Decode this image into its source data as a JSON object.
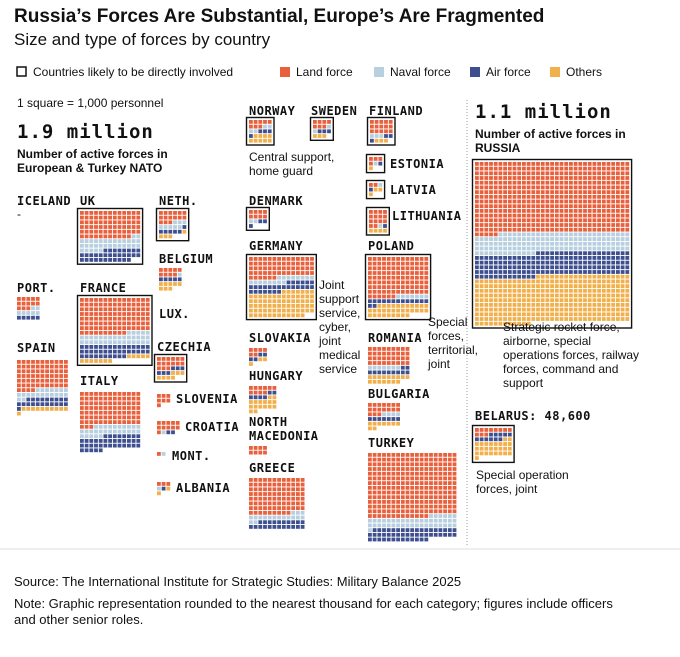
{
  "chart_data": {
    "type": "waffle",
    "title": "Russia’s Forces Are Substantial, Europe’s Are Fragmented",
    "subtitle": "Size and type of forces by country",
    "involved_label": "Countries likely to be directly involved",
    "series": [
      {
        "name": "Land force",
        "color": "#e8603c"
      },
      {
        "name": "Naval force",
        "color": "#b8cfe0"
      },
      {
        "name": "Air force",
        "color": "#3d4f8f"
      },
      {
        "name": "Others",
        "color": "#f2b04c"
      }
    ],
    "unit_note": "1 square = 1,000 personnel",
    "totals": [
      {
        "label": "1.9 million",
        "note": "Number of active forces in European & Turkey NATO"
      },
      {
        "label": "1.1 million",
        "note": "Number of active forces in RUSSIA"
      }
    ],
    "countries": [
      {
        "name": "NORWAY",
        "values": [
          8,
          4,
          4,
          9
        ],
        "involved": true,
        "note": "Central support, home guard"
      },
      {
        "name": "SWEDEN",
        "values": [
          7,
          2,
          3,
          3
        ],
        "involved": true
      },
      {
        "name": "FINLAND",
        "values": [
          15,
          3,
          3,
          3
        ],
        "involved": true
      },
      {
        "name": "ESTONIA",
        "values": [
          4,
          1,
          1,
          1
        ],
        "involved": true
      },
      {
        "name": "LATVIA",
        "values": [
          2,
          1,
          1,
          3
        ],
        "involved": true
      },
      {
        "name": "LITHUANIA",
        "values": [
          14,
          1,
          1,
          4
        ],
        "involved": true
      },
      {
        "name": "ICELAND",
        "values": [
          0,
          0,
          0,
          0
        ],
        "involved": false,
        "value_label": "-"
      },
      {
        "name": "UK",
        "values": [
          76,
          33,
          32,
          0
        ],
        "involved": true
      },
      {
        "name": "NETH.",
        "values": [
          15,
          8,
          6,
          4
        ],
        "involved": true
      },
      {
        "name": "BELGIUM",
        "values": [
          9,
          1,
          5,
          8
        ],
        "involved": false
      },
      {
        "name": "LUX.",
        "values": [
          0,
          0,
          0,
          0
        ],
        "involved": false
      },
      {
        "name": "PORT.",
        "values": [
          13,
          7,
          5,
          0
        ],
        "involved": false
      },
      {
        "name": "FRANCE",
        "values": [
          115,
          35,
          40,
          12
        ],
        "involved": true
      },
      {
        "name": "SPAIN",
        "values": [
          70,
          20,
          21,
          11
        ],
        "involved": false
      },
      {
        "name": "ITALY",
        "values": [
          94,
          28,
          39,
          0
        ],
        "involved": false
      },
      {
        "name": "CZECHIA",
        "values": [
          15,
          0,
          6,
          7
        ],
        "involved": true
      },
      {
        "name": "SLOVENIA",
        "values": [
          7,
          0,
          0,
          0
        ],
        "involved": false
      },
      {
        "name": "CROATIA",
        "values": [
          11,
          1,
          2,
          0
        ],
        "involved": false
      },
      {
        "name": "MONT.",
        "values": [
          1,
          1,
          0,
          0
        ],
        "involved": false
      },
      {
        "name": "ALBANIA",
        "values": [
          3,
          1,
          1,
          2
        ],
        "involved": false
      },
      {
        "name": "DENMARK",
        "values": [
          8,
          2,
          3,
          0
        ],
        "involved": true
      },
      {
        "name": "GERMANY",
        "values": [
          62,
          16,
          27,
          75
        ],
        "involved": true,
        "note": "Joint support service, cyber, joint medical service"
      },
      {
        "name": "SLOVAKIA",
        "values": [
          6,
          0,
          4,
          3
        ],
        "involved": false
      },
      {
        "name": "HUNGARY",
        "values": [
          10,
          0,
          6,
          16
        ],
        "involved": false
      },
      {
        "name": "NORTH MACEDONIA",
        "values": [
          8,
          0,
          0,
          0
        ],
        "involved": false
      },
      {
        "name": "GREECE",
        "values": [
          93,
          17,
          22,
          0
        ],
        "involved": false
      },
      {
        "name": "POLAND",
        "values": [
          110,
          7,
          15,
          33
        ],
        "involved": true,
        "note": "Special forces, territorial, joint"
      },
      {
        "name": "ROMANIA",
        "values": [
          36,
          7,
          11,
          16
        ],
        "involved": false
      },
      {
        "name": "BULGARIA",
        "values": [
          17,
          4,
          7,
          9
        ],
        "involved": false
      },
      {
        "name": "TURKEY",
        "values": [
          260,
          45,
          50,
          0
        ],
        "involved": false
      },
      {
        "values": [
          500,
          140,
          165,
          329
        ],
        "involved": true,
        "note": "Strategic rocket force, airborne, special operations forces, railway forces, command and support"
      },
      {
        "name": "BELARUS: 48,600",
        "values": [
          11,
          0,
          11,
          27
        ],
        "involved": true,
        "note": "Special operation forces, joint"
      }
    ],
    "source": "Source: The International Institute for Strategic Studies: Military Balance 2025",
    "footnote": "Note: Graphic representation rounded to the nearest thousand for each category; figures include officers and other senior roles."
  }
}
